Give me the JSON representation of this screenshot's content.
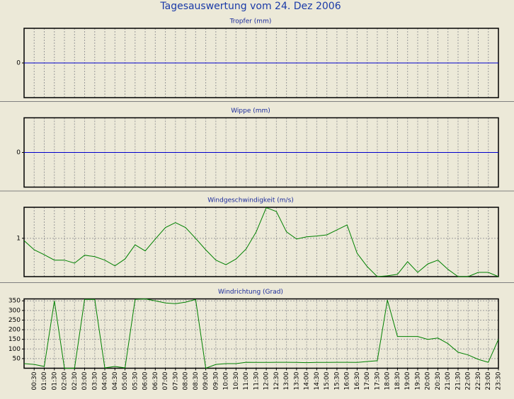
{
  "title": "Tagesauswertung vom 24. Dez 2006",
  "chart_data": [
    {
      "type": "line",
      "title": "Tropfer (mm)",
      "ylim": [
        -1,
        1
      ],
      "yticks": [
        0
      ],
      "grid": true,
      "series": [
        {
          "color": "#0000cc",
          "values": [
            0,
            0,
            0,
            0,
            0,
            0,
            0,
            0,
            0,
            0,
            0,
            0,
            0,
            0,
            0,
            0,
            0,
            0,
            0,
            0,
            0,
            0,
            0,
            0,
            0,
            0,
            0,
            0,
            0,
            0,
            0,
            0,
            0,
            0,
            0,
            0,
            0,
            0,
            0,
            0,
            0,
            0,
            0,
            0,
            0,
            0,
            0,
            0
          ]
        }
      ]
    },
    {
      "type": "line",
      "title": "Wippe (mm)",
      "ylim": [
        -1,
        1
      ],
      "yticks": [
        0
      ],
      "grid": true,
      "series": [
        {
          "color": "#0000cc",
          "values": [
            0,
            0,
            0,
            0,
            0,
            0,
            0,
            0,
            0,
            0,
            0,
            0,
            0,
            0,
            0,
            0,
            0,
            0,
            0,
            0,
            0,
            0,
            0,
            0,
            0,
            0,
            0,
            0,
            0,
            0,
            0,
            0,
            0,
            0,
            0,
            0,
            0,
            0,
            0,
            0,
            0,
            0,
            0,
            0,
            0,
            0,
            0,
            0
          ]
        }
      ]
    },
    {
      "type": "line",
      "title": "Windgeschwindigkeit (m/s)",
      "ylim": [
        0,
        1.81
      ],
      "yticks": [
        1
      ],
      "grid": true,
      "series": [
        {
          "color": "#008000",
          "values": [
            0.94,
            0.7,
            0.57,
            0.43,
            0.43,
            0.35,
            0.56,
            0.52,
            0.43,
            0.28,
            0.46,
            0.83,
            0.67,
            0.98,
            1.28,
            1.41,
            1.28,
            1.0,
            0.7,
            0.43,
            0.31,
            0.46,
            0.72,
            1.17,
            1.8,
            1.7,
            1.17,
            0.98,
            1.04,
            1.06,
            1.09,
            1.22,
            1.35,
            0.61,
            0.26,
            0,
            0.02,
            0.06,
            0.39,
            0.11,
            0.33,
            0.43,
            0.19,
            0,
            0,
            0.11,
            0.11,
            0
          ]
        }
      ]
    },
    {
      "type": "line",
      "title": "Windrichtung (Grad)",
      "ylim": [
        0,
        360
      ],
      "yticks": [
        50,
        100,
        150,
        200,
        250,
        300,
        350
      ],
      "grid": true,
      "categories": [
        null,
        "00:30",
        "01:00",
        "01:30",
        "02:00",
        "02:30",
        "03:00",
        "03:30",
        "04:00",
        "04:30",
        "05:00",
        "05:30",
        "06:00",
        "06:30",
        "07:00",
        "07:30",
        "08:00",
        "08:30",
        "09:00",
        "09:30",
        "10:00",
        "10:30",
        "11:00",
        "11:30",
        "12:00",
        "12:30",
        "13:00",
        "13:30",
        "14:00",
        "14:30",
        "15:00",
        "15:30",
        "16:00",
        "16:30",
        "17:00",
        "17:30",
        "18:00",
        "18:30",
        "19:00",
        "19:30",
        "20:00",
        "20:30",
        "21:00",
        "21:30",
        "22:00",
        "22:30",
        "23:00",
        "23:30"
      ],
      "series": [
        {
          "color": "#008000",
          "values": [
            24,
            20,
            9,
            350,
            0,
            0,
            357,
            357,
            2,
            9,
            2,
            357,
            360,
            350,
            339,
            335,
            343,
            357,
            0,
            20,
            24,
            24,
            31,
            30,
            30,
            31,
            31,
            30,
            29,
            30,
            30,
            31,
            31,
            30,
            35,
            39,
            354,
            165,
            165,
            165,
            150,
            157,
            128,
            83,
            69,
            46,
            31,
            150
          ]
        }
      ]
    }
  ]
}
